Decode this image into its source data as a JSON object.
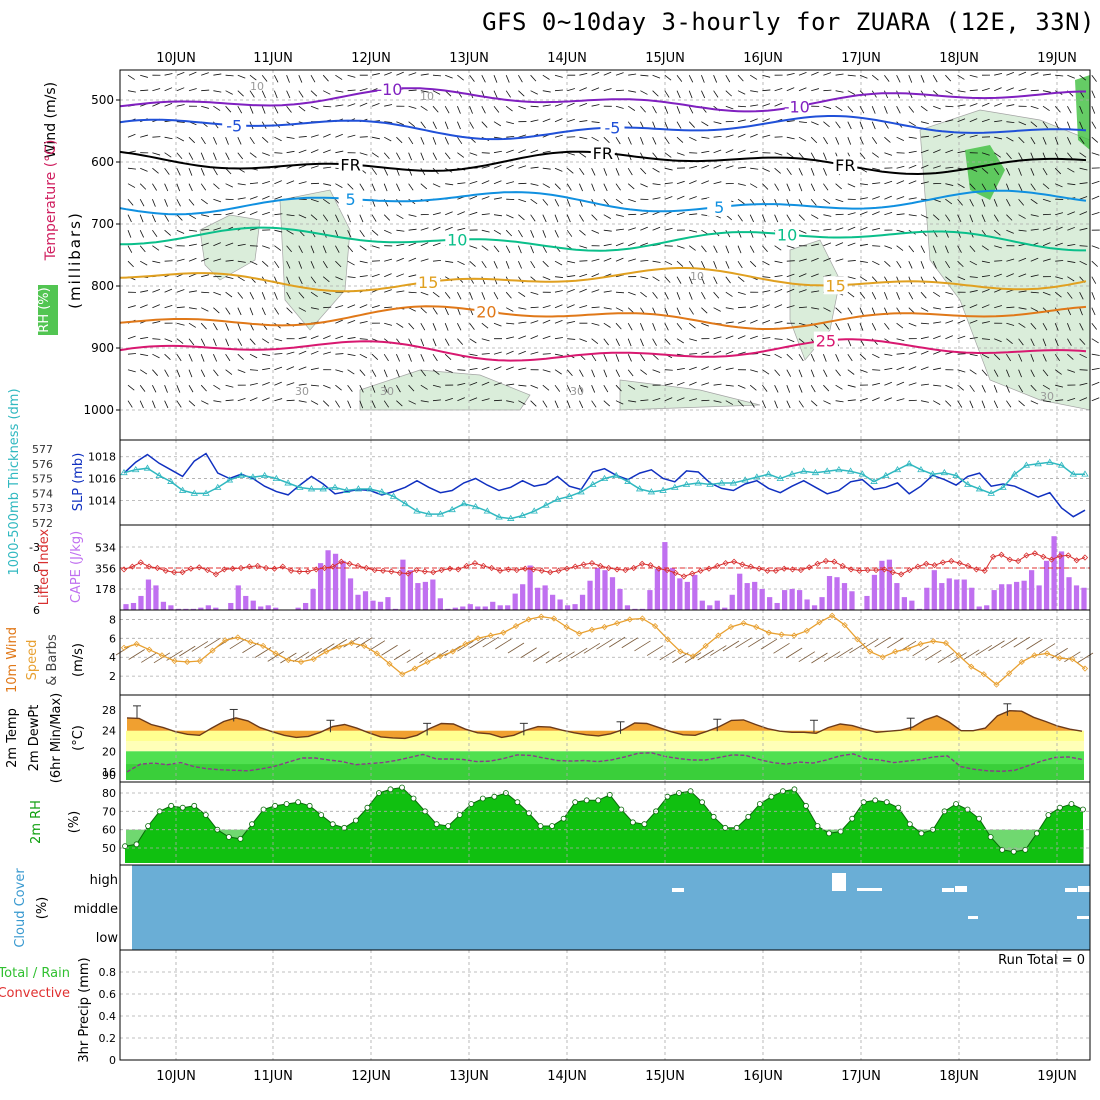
{
  "title": "GFS 0~10day 3-hourly for ZUARA (12E, 33N)",
  "colors": {
    "rh_green": "#3fbf3f",
    "temp_10": "#0abf8a",
    "temp_15": "#e0a020",
    "temp_20": "#e07818",
    "temp_25": "#d81870",
    "temp_m5": "#2050d8",
    "temp_m10": "#8020c0",
    "temp_5": "#1090e0",
    "slp": "#1030c0",
    "thickness": "#30b8c0",
    "lifted_index": "#d83030",
    "cape": "#c070f0",
    "wind10m": "#e8a030",
    "temp2m_fill": "#f0a030",
    "dewpt_fill": "#50e050",
    "rh2m": "#10c010",
    "cloud": "#6aaed6"
  },
  "chart_data": [
    {
      "panel": "upper",
      "type": "contour",
      "x_ticks": [
        "10JUN",
        "11JUN",
        "12JUN",
        "13JUN",
        "14JUN",
        "15JUN",
        "16JUN",
        "17JUN",
        "18JUN",
        "19JUN"
      ],
      "y_ticks": [
        500,
        600,
        700,
        800,
        900,
        1000
      ],
      "ylabel_wind": "Wind (m/s)",
      "ylabel_temp": "Temperature (°C)",
      "ylabel_rh": "RH (%)",
      "ylabel_units": "(millibars)",
      "isotherms": [
        {
          "label": "-10",
          "level_mb": 500,
          "color": "temp_m10",
          "label_positions": [
            2.2,
            6.4
          ]
        },
        {
          "label": "-5",
          "level_mb": 545,
          "color": "temp_m5",
          "label_positions": [
            0.6,
            4.5
          ]
        },
        {
          "label": "FR",
          "level_mb": 600,
          "color": "black",
          "label_positions": [
            1.8,
            4.4,
            6.9
          ]
        },
        {
          "label": "5",
          "level_mb": 665,
          "color": "temp_5",
          "label_positions": [
            1.8,
            5.6
          ]
        },
        {
          "label": "10",
          "level_mb": 725,
          "color": "temp_10",
          "label_positions": [
            2.9,
            6.3
          ]
        },
        {
          "label": "15",
          "level_mb": 790,
          "color": "temp_15",
          "label_positions": [
            2.6,
            6.8
          ]
        },
        {
          "label": "20",
          "level_mb": 850,
          "color": "temp_20",
          "label_positions": [
            3.2
          ]
        },
        {
          "label": "25",
          "level_mb": 905,
          "color": "temp_25",
          "label_positions": [
            6.7
          ]
        }
      ],
      "rh_labels": [
        "10",
        "10",
        "30",
        "30",
        "30",
        "30",
        "10"
      ]
    },
    {
      "panel": "slp_thickness",
      "type": "line",
      "ylabel_left": "1000-500mb Thickness (dm)",
      "ylabel_right": "SLP (mb)",
      "thickness_ticks": [
        577,
        576,
        575,
        574,
        573,
        572
      ],
      "slp_ticks": [
        1018,
        1016,
        1014
      ],
      "series": [
        {
          "name": "SLP",
          "values": [
            1016.5,
            1017.5,
            1018.2,
            1017.4,
            1016.8,
            1016.2,
            1017.6,
            1018.3,
            1016.5,
            1016.0,
            1016.4,
            1016.0,
            1015.3,
            1014.8,
            1014.5,
            1015.4,
            1016.2,
            1015.5,
            1014.6,
            1014.8,
            1015.0,
            1014.9,
            1014.5,
            1014.8,
            1015.2,
            1015.8,
            1015.2,
            1014.7,
            1014.9,
            1015.6,
            1016.0,
            1015.4,
            1014.9,
            1015.2,
            1015.8,
            1015.3,
            1015.5,
            1016.2,
            1015.3,
            1015.0,
            1016.6,
            1016.9,
            1016.3,
            1015.9,
            1016.5,
            1016.8,
            1016.0,
            1015.7,
            1016.7,
            1016.6,
            1015.6,
            1015.1,
            1014.9,
            1015.5,
            1015.8,
            1015.1,
            1014.7,
            1015.3,
            1015.8,
            1015.2,
            1014.6,
            1014.9,
            1015.7,
            1015.9,
            1015.0,
            1015.2,
            1015.6,
            1014.6,
            1015.3,
            1016.3,
            1015.9,
            1015.4,
            1016.2,
            1016.5,
            1015.3,
            1015.5,
            1015.3,
            1014.8,
            1014.3,
            1014.7,
            1013.3,
            1012.5,
            1013.1
          ]
        },
        {
          "name": "Thickness",
          "values": [
            575.4,
            575.6,
            575.7,
            575.2,
            574.8,
            574.2,
            574.0,
            574.0,
            574.4,
            574.9,
            575.2,
            575.1,
            575.2,
            575.0,
            574.7,
            574.4,
            574.3,
            574.3,
            574.4,
            574.2,
            574.3,
            574.3,
            574.1,
            573.8,
            573.3,
            572.8,
            572.6,
            572.6,
            572.9,
            573.3,
            573.1,
            572.8,
            572.4,
            572.3,
            572.5,
            572.8,
            573.2,
            573.6,
            573.8,
            574.1,
            574.6,
            575.0,
            575.2,
            574.8,
            574.3,
            574.1,
            574.2,
            574.4,
            574.6,
            574.7,
            574.6,
            574.7,
            574.7,
            574.9,
            575.1,
            575.3,
            575.0,
            575.3,
            575.5,
            575.4,
            575.5,
            575.6,
            575.5,
            575.3,
            574.8,
            575.2,
            575.6,
            576.0,
            575.6,
            575.3,
            575.4,
            575.2,
            574.6,
            574.3,
            574.0,
            574.4,
            575.3,
            575.9,
            576.0,
            576.1,
            575.9,
            575.3,
            575.3
          ]
        }
      ]
    },
    {
      "panel": "cape_li",
      "type": "bar",
      "ylabel_left": "Lifted Index",
      "ylabel_right": "CAPE (J/kg)",
      "li_ticks": [
        -3,
        0,
        3,
        6
      ],
      "cape_ticks": [
        534,
        356,
        178
      ],
      "series": [
        {
          "name": "CAPE",
          "values": [
            50,
            60,
            120,
            260,
            210,
            70,
            40,
            10,
            10,
            10,
            20,
            40,
            20,
            0,
            60,
            210,
            120,
            80,
            30,
            40,
            20,
            0,
            0,
            20,
            60,
            180,
            400,
            510,
            480,
            420,
            270,
            130,
            160,
            80,
            70,
            110,
            10,
            430,
            340,
            230,
            240,
            260,
            100,
            10,
            20,
            30,
            50,
            30,
            30,
            70,
            40,
            40,
            140,
            220,
            380,
            190,
            210,
            130,
            90,
            40,
            50,
            130,
            250,
            360,
            340,
            280,
            180,
            40,
            10,
            10,
            170,
            350,
            580,
            360,
            270,
            240,
            300,
            80,
            40,
            80,
            20,
            130,
            310,
            230,
            240,
            180,
            110,
            60,
            170,
            180,
            170,
            90,
            40,
            110,
            290,
            280,
            230,
            160,
            0,
            120,
            300,
            420,
            430,
            230,
            110,
            80,
            10,
            190,
            340,
            230,
            270,
            260,
            260,
            190,
            30,
            40,
            170,
            220,
            220,
            240,
            250,
            340,
            210,
            420,
            630,
            500,
            280,
            210,
            190
          ]
        },
        {
          "name": "Lifted Index",
          "values": [
            0.2,
            -0.2,
            -0.8,
            -0.2,
            0.0,
            0.4,
            0.6,
            0.6,
            0.1,
            -0.1,
            0.3,
            0.9,
            0.2,
            0.1,
            0.0,
            -0.2,
            -0.3,
            0.0,
            0.1,
            -0.2,
            0.4,
            0.5,
            0.5,
            0.2,
            0.0,
            -0.2,
            -0.9,
            -0.6,
            -0.3,
            0.0,
            0.3,
            0.4,
            0.5,
            0.7,
            0.8,
            0.3,
            0.5,
            0.6,
            0.3,
            0.1,
            0.2,
            -0.3,
            -0.7,
            -0.3,
            0.0,
            0.4,
            0.2,
            0.3,
            0.1,
            0.2,
            0.4,
            0.6,
            0.4,
            0.1,
            -0.2,
            -0.5,
            -0.7,
            -0.3,
            0.0,
            0.2,
            0.3,
            0.0,
            -0.6,
            -0.4,
            0.1,
            0.3,
            0.7,
            1.2,
            0.8,
            0.4,
            0.1,
            -0.3,
            -0.7,
            -0.9,
            -0.5,
            -0.2,
            0.1,
            0.4,
            0.4,
            0.1,
            0.2,
            0.3,
            -0.1,
            -0.6,
            -1.0,
            -0.9,
            -0.3,
            0.2,
            0.4,
            0.3,
            0.3,
            0.2,
            0.6,
            0.9,
            0.3,
            -0.2,
            -0.6,
            -0.4,
            -0.8,
            -1.0,
            -0.7,
            -0.3,
            0.2,
            0.4,
            -1.6,
            -1.9,
            -1.2,
            -1.0,
            -1.8,
            -2.1,
            -1.6,
            -1.2,
            -1.7,
            -1.8,
            -1.1,
            -1.5
          ]
        }
      ]
    },
    {
      "panel": "wind10m",
      "type": "line",
      "ylabel_a": "10m Wind",
      "ylabel_b": "Speed",
      "ylabel_c": "& Barbs",
      "ylabel_units": "(m/s)",
      "ylim": [
        0,
        9
      ],
      "yticks": [
        2,
        4,
        6,
        8
      ],
      "series": [
        {
          "name": "Speed",
          "values": [
            5.0,
            5.4,
            4.8,
            4.2,
            3.6,
            3.5,
            3.6,
            4.7,
            5.8,
            6.1,
            5.6,
            5.2,
            4.4,
            3.7,
            3.5,
            3.8,
            4.6,
            5.1,
            5.5,
            5.2,
            4.4,
            3.3,
            2.2,
            2.8,
            3.5,
            4.1,
            4.6,
            5.4,
            6.0,
            6.3,
            6.6,
            7.3,
            8.0,
            8.3,
            8.1,
            7.2,
            6.5,
            6.9,
            7.2,
            7.6,
            8.0,
            8.1,
            7.3,
            5.9,
            4.6,
            4.1,
            5.2,
            6.3,
            7.2,
            7.6,
            7.2,
            6.6,
            6.4,
            6.3,
            6.8,
            7.7,
            8.4,
            7.4,
            5.9,
            4.6,
            4.0,
            4.6,
            4.9,
            5.4,
            5.7,
            5.5,
            4.2,
            3.0,
            2.2,
            1.1,
            2.3,
            3.5,
            4.2,
            4.4,
            3.9,
            3.8,
            2.8
          ]
        }
      ]
    },
    {
      "panel": "temp2m",
      "type": "area",
      "ylabel_a": "2m Temp",
      "ylabel_b": "2m DewPt",
      "ylabel_c": "(6hr Min/Max)",
      "ylabel_units": "(°C)",
      "yticks": [
        16,
        20,
        24,
        28
      ],
      "bottom_tick": "90",
      "series": [
        {
          "name": "Temp",
          "values": [
            26.5,
            26.4,
            25.2,
            24.6,
            23.8,
            23.3,
            23.1,
            24.5,
            25.8,
            26.5,
            25.9,
            24.6,
            23.8,
            23.1,
            22.7,
            22.9,
            23.7,
            24.8,
            25.2,
            24.5,
            23.6,
            22.8,
            22.6,
            22.5,
            23.1,
            24.4,
            25.4,
            25.3,
            24.3,
            23.6,
            23.4,
            22.7,
            23.1,
            24.1,
            24.8,
            24.7,
            24.1,
            23.6,
            23.2,
            23.0,
            23.4,
            24.2,
            25.5,
            25.4,
            24.6,
            23.8,
            23.2,
            23.1,
            23.9,
            24.8,
            26.0,
            26.1,
            25.2,
            24.4,
            23.9,
            23.7,
            23.7,
            23.5,
            24.6,
            25.3,
            25.0,
            24.3,
            23.7,
            23.9,
            24.1,
            24.7,
            26.1,
            26.9,
            25.7,
            24.0,
            24.0,
            24.5,
            26.9,
            27.9,
            27.8,
            26.6,
            25.8,
            24.9,
            24.3,
            23.9
          ]
        },
        {
          "name": "Dewpt",
          "values": [
            16.0,
            17.5,
            17.7,
            17.4,
            17.8,
            17.0,
            16.6,
            16.4,
            16.3,
            16.2,
            16.6,
            17.1,
            17.9,
            18.7,
            18.7,
            18.3,
            18.0,
            17.4,
            17.6,
            17.8,
            18.2,
            18.8,
            19.4,
            18.5,
            18.5,
            18.4,
            18.0,
            18.1,
            18.6,
            19.3,
            19.2,
            18.7,
            18.2,
            18.1,
            18.2,
            18.0,
            18.3,
            18.9,
            19.6,
            19.7,
            19.0,
            18.6,
            18.3,
            18.3,
            18.8,
            19.3,
            19.2,
            18.4,
            17.8,
            17.5,
            17.9,
            17.7,
            18.3,
            19.1,
            19.5,
            18.5,
            18.3,
            17.8,
            18.1,
            18.4,
            18.9,
            19.1,
            17.0,
            16.5,
            16.2,
            16.1,
            16.3,
            17.2,
            18.1,
            18.8,
            18.9,
            18.4
          ]
        }
      ]
    },
    {
      "panel": "rh2m",
      "type": "area",
      "ylabel": "2m RH",
      "ylabel_units": "(%)",
      "yticks": [
        50,
        60,
        70,
        80
      ],
      "series": [
        {
          "name": "RH",
          "values": [
            51,
            52,
            62,
            70,
            73,
            72,
            73,
            68,
            60,
            56,
            55,
            63,
            71,
            73,
            74,
            75,
            73,
            68,
            63,
            61,
            65,
            72,
            80,
            82,
            83,
            77,
            70,
            63,
            62,
            68,
            74,
            77,
            78,
            80,
            75,
            69,
            62,
            62,
            66,
            75,
            76,
            76,
            79,
            71,
            64,
            63,
            70,
            78,
            80,
            81,
            75,
            67,
            61,
            61,
            67,
            74,
            78,
            81,
            82,
            73,
            62,
            58,
            59,
            66,
            75,
            76,
            75,
            72,
            63,
            58,
            60,
            70,
            74,
            71,
            66,
            56,
            49,
            48,
            49,
            58,
            68,
            72,
            74,
            71
          ]
        }
      ]
    },
    {
      "panel": "cloud",
      "type": "area",
      "ylabel": "Cloud Cover",
      "ylabel_units": "(%)",
      "levels": [
        "high",
        "middle",
        "low"
      ]
    },
    {
      "panel": "precip",
      "type": "bar",
      "ylabel_a": "Total / Rain",
      "ylabel_b": "Convective",
      "ylabel_units": "3hr Precip (mm)",
      "yticks": [
        "0",
        "0.2",
        "0.4",
        "0.6",
        "0.8"
      ],
      "run_total": "Run Total = 0",
      "values": []
    }
  ]
}
